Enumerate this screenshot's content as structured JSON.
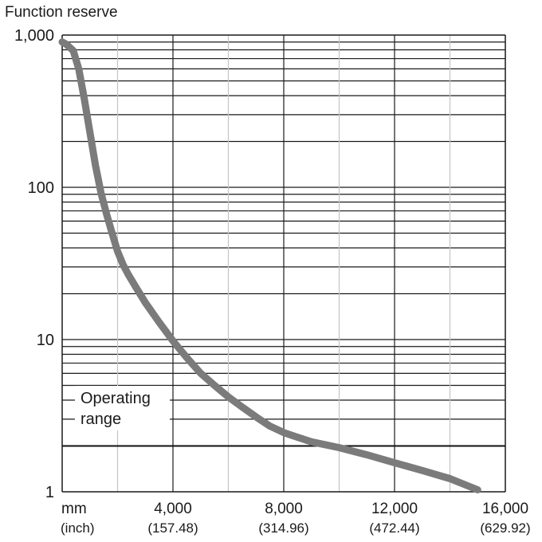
{
  "chart_data": {
    "type": "line",
    "title": "Function reserve",
    "y_scale": "log",
    "ylim": [
      1,
      1000
    ],
    "xlim": [
      0,
      16000
    ],
    "y_ticks": [
      {
        "value": 1,
        "label": "1"
      },
      {
        "value": 10,
        "label": "10"
      },
      {
        "value": 100,
        "label": "100"
      },
      {
        "value": 1000,
        "label": "1,000"
      }
    ],
    "x_unit_primary": "mm",
    "x_unit_secondary": "(inch)",
    "x_ticks": [
      {
        "value": 4000,
        "label": "4,000",
        "sublabel": "(157.48)"
      },
      {
        "value": 8000,
        "label": "8,000",
        "sublabel": "(314.96)"
      },
      {
        "value": 12000,
        "label": "12,000",
        "sublabel": "(472.44)"
      },
      {
        "value": 16000,
        "label": "16,000",
        "sublabel": "(629.92)"
      }
    ],
    "x_minor_gridlines": [
      2000,
      6000,
      10000,
      14000
    ],
    "grid": true,
    "operating_range": {
      "threshold": 2,
      "label_line1": "Operating",
      "label_line2": "range"
    },
    "series": [
      {
        "color": "#7b7b7b",
        "points": [
          [
            0,
            900
          ],
          [
            150,
            870
          ],
          [
            400,
            790
          ],
          [
            600,
            600
          ],
          [
            800,
            380
          ],
          [
            1000,
            230
          ],
          [
            1200,
            140
          ],
          [
            1400,
            92
          ],
          [
            1600,
            67
          ],
          [
            1800,
            50
          ],
          [
            2000,
            38
          ],
          [
            2200,
            31
          ],
          [
            2400,
            26.5
          ],
          [
            2700,
            21.5
          ],
          [
            3000,
            17.5
          ],
          [
            3500,
            13
          ],
          [
            4000,
            9.8
          ],
          [
            4500,
            7.6
          ],
          [
            5000,
            6.0
          ],
          [
            5500,
            5.0
          ],
          [
            6000,
            4.2
          ],
          [
            6500,
            3.6
          ],
          [
            7000,
            3.1
          ],
          [
            7500,
            2.7
          ],
          [
            8000,
            2.45
          ],
          [
            8500,
            2.28
          ],
          [
            9000,
            2.13
          ],
          [
            10000,
            1.95
          ],
          [
            11000,
            1.75
          ],
          [
            12000,
            1.55
          ],
          [
            13000,
            1.38
          ],
          [
            14000,
            1.22
          ],
          [
            15000,
            1.03
          ]
        ]
      }
    ]
  }
}
